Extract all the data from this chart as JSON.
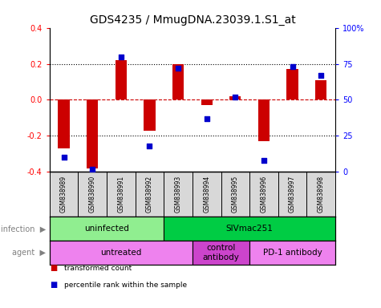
{
  "title": "GDS4235 / MmugDNA.23039.1.S1_at",
  "samples": [
    "GSM838989",
    "GSM838990",
    "GSM838991",
    "GSM838992",
    "GSM838993",
    "GSM838994",
    "GSM838995",
    "GSM838996",
    "GSM838997",
    "GSM838998"
  ],
  "transformed_count": [
    -0.27,
    -0.38,
    0.22,
    -0.17,
    0.2,
    -0.03,
    0.02,
    -0.23,
    0.17,
    0.11
  ],
  "percentile_rank": [
    10,
    2,
    80,
    18,
    72,
    37,
    52,
    8,
    73,
    67
  ],
  "ylim_left": [
    -0.4,
    0.4
  ],
  "ylim_right": [
    0,
    100
  ],
  "yticks_left": [
    -0.4,
    -0.2,
    0.0,
    0.2,
    0.4
  ],
  "yticks_right": [
    0,
    25,
    50,
    75,
    100
  ],
  "ytick_labels_right": [
    "0",
    "25",
    "50",
    "75",
    "100%"
  ],
  "bar_color": "#cc0000",
  "scatter_color": "#0000cc",
  "hline_color": "#cc0000",
  "dotted_color": "black",
  "infection_groups": [
    {
      "label": "uninfected",
      "start": 0,
      "end": 4,
      "color": "#90ee90"
    },
    {
      "label": "SIVmac251",
      "start": 4,
      "end": 10,
      "color": "#00cc44"
    }
  ],
  "agent_groups": [
    {
      "label": "untreated",
      "start": 0,
      "end": 5,
      "color": "#ee82ee"
    },
    {
      "label": "control\nantibody",
      "start": 5,
      "end": 7,
      "color": "#cc44cc"
    },
    {
      "label": "PD-1 antibody",
      "start": 7,
      "end": 10,
      "color": "#ee82ee"
    }
  ],
  "legend_items": [
    {
      "color": "#cc0000",
      "label": "transformed count"
    },
    {
      "color": "#0000cc",
      "label": "percentile rank within the sample"
    }
  ],
  "background_color": "#ffffff",
  "title_fontsize": 10,
  "tick_fontsize": 7,
  "bar_width": 0.4
}
